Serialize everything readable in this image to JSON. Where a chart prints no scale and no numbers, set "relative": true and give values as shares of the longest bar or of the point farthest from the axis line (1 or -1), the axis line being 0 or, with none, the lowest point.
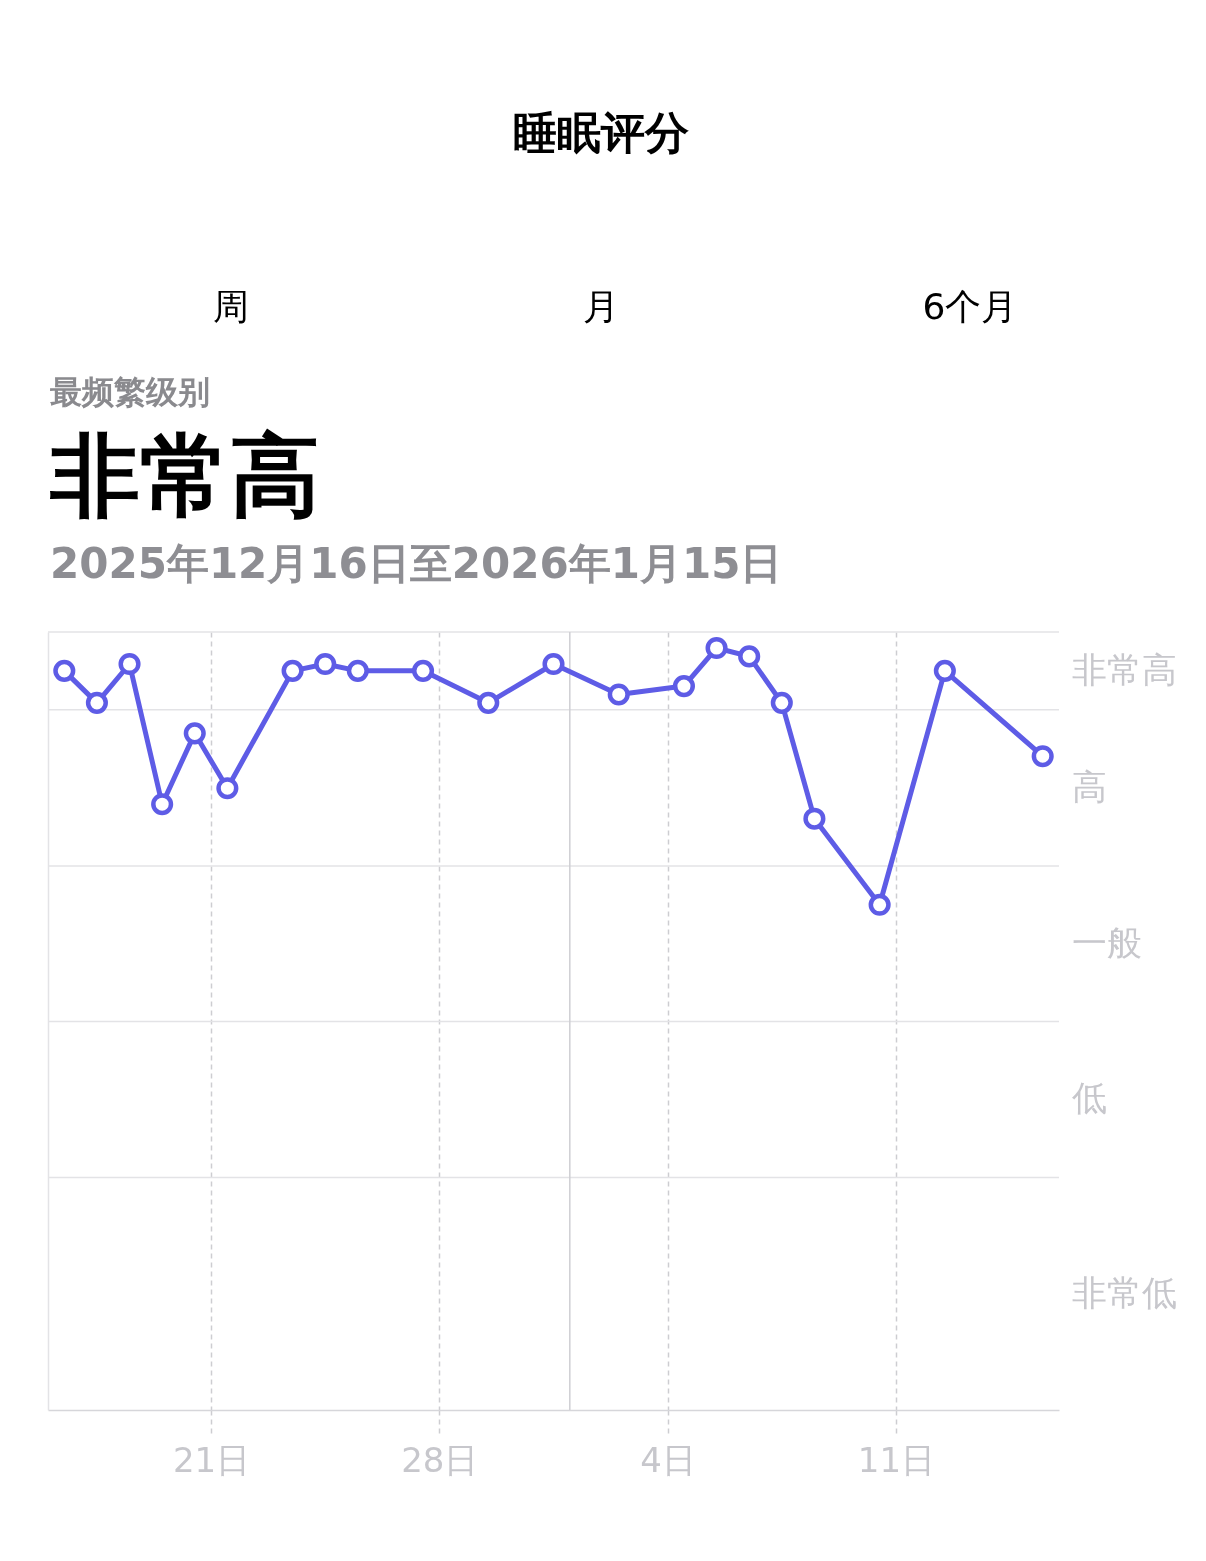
{
  "chart_data": {
    "type": "line",
    "title": "睡眠评分",
    "subtitle": "2025年12月16日至2026年1月15日",
    "annotations": [
      "周",
      "月",
      "6个月",
      "最频繁级别",
      "非常高",
      "非常高",
      "高",
      "一般",
      "低",
      "非常低"
    ],
    "x": [
      "2025-12-16T12:00",
      "2025-12-17T12:00",
      "2025-12-18T12:00",
      "2025-12-19T12:00",
      "2025-12-20T12:00",
      "2025-12-21T12:00",
      "2025-12-23T12:00",
      "2025-12-24T12:00",
      "2025-12-25T12:00",
      "2025-12-27T12:00",
      "2025-12-29T12:00",
      "2025-12-31T12:00",
      "2026-01-02T12:00",
      "2026-01-04T12:00",
      "2026-01-05T12:00",
      "2026-01-06T12:00",
      "2026-01-07T12:00",
      "2026-01-08T12:00",
      "2026-01-10T12:00",
      "2026-01-12T12:00",
      "2026-01-15T12:00"
    ],
    "values": [
      0.97,
      0.928,
      0.979,
      0.795,
      0.888,
      0.816,
      0.97,
      0.979,
      0.97,
      0.97,
      0.928,
      0.979,
      0.939,
      0.95,
      1,
      0.989,
      0.928,
      0.776,
      0.663,
      0.97,
      0.858
    ],
    "color": "#5e5ce6",
    "marker": "circle",
    "line_style": "solid",
    "relative": true,
    "xlim": [
      "2025-12-16",
      "2026-01-16"
    ],
    "xticks": [
      {
        "value": "2025-12-21",
        "label": "21日"
      },
      {
        "value": "2025-12-28",
        "label": "28日"
      },
      {
        "value": "2026-01-04",
        "label": "4日"
      },
      {
        "value": "2026-01-11",
        "label": "11日"
      }
    ],
    "tick_labels": "x",
    "grid": "x",
    "ref_lines": [
      {
        "axis": "y",
        "value": 1.021,
        "color": "#e3e3e6"
      },
      {
        "axis": "y",
        "value": 0.919,
        "color": "#e3e3e6"
      },
      {
        "axis": "y",
        "value": 0.714,
        "color": "#e3e3e6"
      },
      {
        "axis": "y",
        "value": 0.51,
        "color": "#e3e3e6"
      },
      {
        "axis": "y",
        "value": 0.305,
        "color": "#e3e3e6"
      },
      {
        "axis": "x",
        "value": "2026-01-01",
        "color": "#cfcfd3",
        "line_style": "solid"
      }
    ]
  }
}
